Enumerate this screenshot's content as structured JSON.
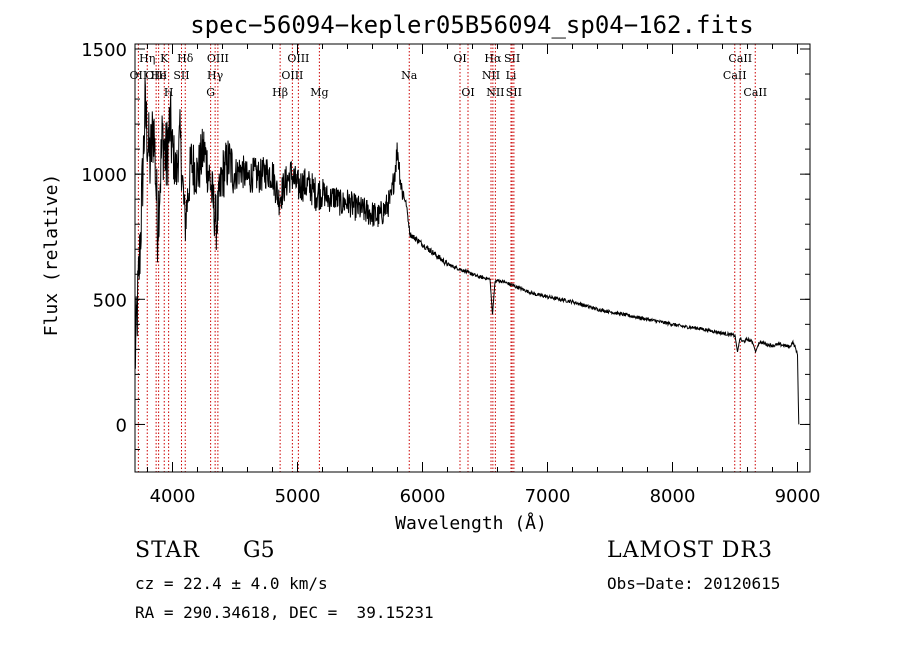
{
  "chart_data": {
    "type": "line",
    "title": "spec−56094−kepler05B56094_sp04−162.fits",
    "xlabel": "Wavelength (Å)",
    "ylabel": "Flux (relative)",
    "xlim": [
      3700,
      9100
    ],
    "ylim": [
      -190,
      1520
    ],
    "xticks": [
      4000,
      5000,
      6000,
      7000,
      8000,
      9000
    ],
    "yticks": [
      0,
      500,
      1000,
      1500
    ],
    "x_minor_step": 200,
    "y_minor_step": 100,
    "line_color": "#000000",
    "marker_color": "#cc0000",
    "spectrum": [
      [
        3700,
        250
      ],
      [
        3740,
        700
      ],
      [
        3780,
        1250
      ],
      [
        3820,
        1050
      ],
      [
        3850,
        1200
      ],
      [
        3880,
        800
      ],
      [
        3920,
        1150
      ],
      [
        3950,
        1050
      ],
      [
        3980,
        1200
      ],
      [
        4000,
        1100
      ],
      [
        4030,
        1000
      ],
      [
        4060,
        1150
      ],
      [
        4100,
        800
      ],
      [
        4150,
        1050
      ],
      [
        4200,
        1000
      ],
      [
        4250,
        1100
      ],
      [
        4300,
        980
      ],
      [
        4350,
        800
      ],
      [
        4400,
        1000
      ],
      [
        4450,
        1050
      ],
      [
        4500,
        1000
      ],
      [
        4550,
        1020
      ],
      [
        4600,
        980
      ],
      [
        4650,
        1000
      ],
      [
        4700,
        990
      ],
      [
        4750,
        1010
      ],
      [
        4800,
        1000
      ],
      [
        4850,
        900
      ],
      [
        4900,
        960
      ],
      [
        4950,
        1000
      ],
      [
        5000,
        950
      ],
      [
        5050,
        960
      ],
      [
        5100,
        950
      ],
      [
        5150,
        920
      ],
      [
        5200,
        930
      ],
      [
        5250,
        900
      ],
      [
        5300,
        910
      ],
      [
        5350,
        880
      ],
      [
        5400,
        890
      ],
      [
        5450,
        870
      ],
      [
        5500,
        860
      ],
      [
        5550,
        850
      ],
      [
        5600,
        840
      ],
      [
        5650,
        830
      ],
      [
        5700,
        860
      ],
      [
        5750,
        900
      ],
      [
        5780,
        1020
      ],
      [
        5800,
        1100
      ],
      [
        5830,
        950
      ],
      [
        5870,
        880
      ],
      [
        5900,
        760
      ],
      [
        5950,
        740
      ],
      [
        6000,
        720
      ],
      [
        6050,
        700
      ],
      [
        6100,
        680
      ],
      [
        6150,
        660
      ],
      [
        6200,
        640
      ],
      [
        6250,
        630
      ],
      [
        6300,
        620
      ],
      [
        6350,
        610
      ],
      [
        6400,
        600
      ],
      [
        6450,
        590
      ],
      [
        6500,
        585
      ],
      [
        6540,
        580
      ],
      [
        6560,
        440
      ],
      [
        6580,
        570
      ],
      [
        6600,
        575
      ],
      [
        6650,
        570
      ],
      [
        6700,
        560
      ],
      [
        6750,
        550
      ],
      [
        6800,
        540
      ],
      [
        6850,
        530
      ],
      [
        6900,
        520
      ],
      [
        6950,
        515
      ],
      [
        7000,
        510
      ],
      [
        7100,
        500
      ],
      [
        7200,
        490
      ],
      [
        7300,
        475
      ],
      [
        7400,
        460
      ],
      [
        7500,
        450
      ],
      [
        7600,
        440
      ],
      [
        7700,
        430
      ],
      [
        7800,
        420
      ],
      [
        7900,
        410
      ],
      [
        8000,
        400
      ],
      [
        8100,
        390
      ],
      [
        8200,
        385
      ],
      [
        8300,
        375
      ],
      [
        8400,
        365
      ],
      [
        8450,
        360
      ],
      [
        8500,
        355
      ],
      [
        8520,
        290
      ],
      [
        8540,
        345
      ],
      [
        8560,
        330
      ],
      [
        8600,
        340
      ],
      [
        8640,
        330
      ],
      [
        8665,
        290
      ],
      [
        8690,
        325
      ],
      [
        8700,
        330
      ],
      [
        8750,
        320
      ],
      [
        8800,
        315
      ],
      [
        8850,
        320
      ],
      [
        8900,
        315
      ],
      [
        8940,
        310
      ],
      [
        8960,
        330
      ],
      [
        8980,
        310
      ],
      [
        9000,
        280
      ],
      [
        9010,
        0
      ]
    ],
    "line_markers": [
      {
        "label": "OII",
        "x": 3727,
        "row": 2
      },
      {
        "label": "Hη",
        "x": 3798,
        "row": 1
      },
      {
        "label": "OIII",
        "x": 3869,
        "row": 2
      },
      {
        "label": "K",
        "x": 3934,
        "row": 1
      },
      {
        "label": "H",
        "x": 3969,
        "row": 3
      },
      {
        "label": "He",
        "x": 3889,
        "row": 2
      },
      {
        "label": "SII",
        "x": 4072,
        "row": 2
      },
      {
        "label": "Hδ",
        "x": 4102,
        "row": 1
      },
      {
        "label": "OIII",
        "x": 4363,
        "row": 1
      },
      {
        "label": "Hγ",
        "x": 4341,
        "row": 2
      },
      {
        "label": "G",
        "x": 4305,
        "row": 3
      },
      {
        "label": "Hβ",
        "x": 4861,
        "row": 3
      },
      {
        "label": "OIII",
        "x": 5007,
        "row": 1
      },
      {
        "label": "OIII",
        "x": 4959,
        "row": 2
      },
      {
        "label": "Mg",
        "x": 5175,
        "row": 3
      },
      {
        "label": "Na",
        "x": 5894,
        "row": 2
      },
      {
        "label": "OI",
        "x": 6300,
        "row": 1
      },
      {
        "label": "OI",
        "x": 6364,
        "row": 3
      },
      {
        "label": "Hα",
        "x": 6563,
        "row": 1
      },
      {
        "label": "NII",
        "x": 6548,
        "row": 2
      },
      {
        "label": "NII",
        "x": 6583,
        "row": 3
      },
      {
        "label": "SII",
        "x": 6717,
        "row": 1
      },
      {
        "label": "Li",
        "x": 6708,
        "row": 2
      },
      {
        "label": "SII",
        "x": 6731,
        "row": 3
      },
      {
        "label": "CaII",
        "x": 8542,
        "row": 1
      },
      {
        "label": "CaII",
        "x": 8498,
        "row": 2
      },
      {
        "label": "CaII",
        "x": 8662,
        "row": 3
      }
    ]
  },
  "info": {
    "object_class": "STAR",
    "subclass": "G5",
    "survey": "LAMOST DR3",
    "cz": "cz = 22.4 ± 4.0 km/s",
    "obs_date": "Obs−Date: 20120615",
    "radec": "RA = 290.34618, DEC =  39.15231"
  }
}
